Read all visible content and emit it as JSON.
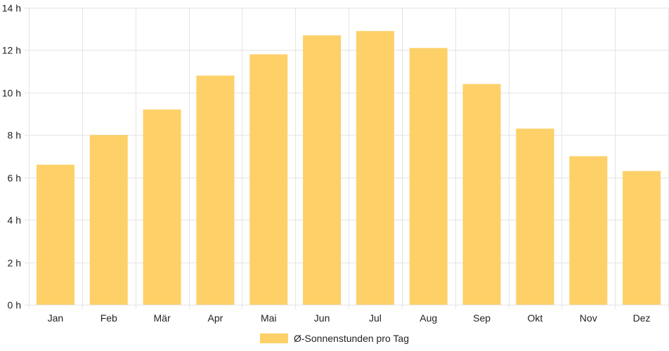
{
  "chart_data": {
    "type": "bar",
    "categories": [
      "Jan",
      "Feb",
      "Mär",
      "Apr",
      "Mai",
      "Jun",
      "Jul",
      "Aug",
      "Sep",
      "Okt",
      "Nov",
      "Dez"
    ],
    "series": [
      {
        "name": "Ø-Sonnenstunden pro Tag",
        "values": [
          6.6,
          8.0,
          9.2,
          10.8,
          11.8,
          12.7,
          12.9,
          12.1,
          10.4,
          8.3,
          7.0,
          6.3
        ],
        "color": "#fdd068"
      }
    ],
    "ylim": [
      0,
      14
    ],
    "yticks": [
      0,
      2,
      4,
      6,
      8,
      10,
      12,
      14
    ],
    "ytick_suffix": " h",
    "grid": true,
    "legend_position": "bottom"
  }
}
